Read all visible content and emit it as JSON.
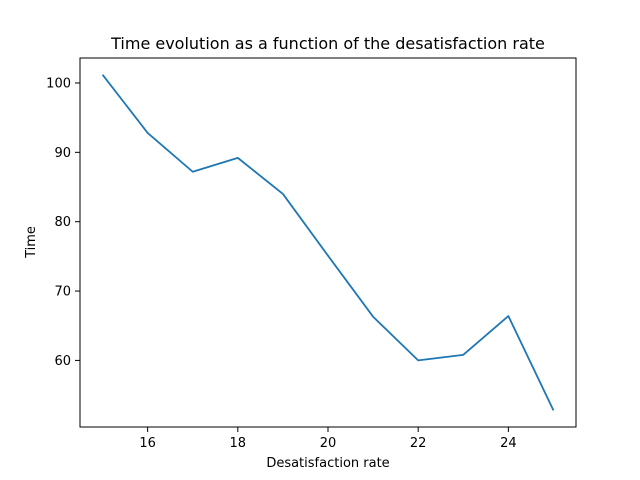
{
  "chart_data": {
    "type": "line",
    "title": "Time evolution as a function of the desatisfaction rate",
    "xlabel": "Desatisfaction rate",
    "ylabel": "Time",
    "x": [
      15,
      16,
      17,
      18,
      19,
      20,
      21,
      22,
      23,
      24,
      25
    ],
    "series": [
      {
        "values": [
          101.2,
          92.8,
          87.2,
          89.2,
          84.0,
          75.1,
          66.3,
          60.0,
          60.8,
          66.4,
          52.8
        ],
        "color": "#1f77b4"
      }
    ],
    "xlim": [
      14.5,
      25.5
    ],
    "ylim": [
      50.4,
      103.6
    ],
    "xticks": [
      16,
      18,
      20,
      22,
      24
    ],
    "yticks": [
      60,
      70,
      80,
      90,
      100
    ],
    "xtick_labels": [
      "16",
      "18",
      "20",
      "22",
      "24"
    ],
    "ytick_labels": [
      "60",
      "70",
      "80",
      "90",
      "100"
    ],
    "grid": false,
    "legend": false
  }
}
